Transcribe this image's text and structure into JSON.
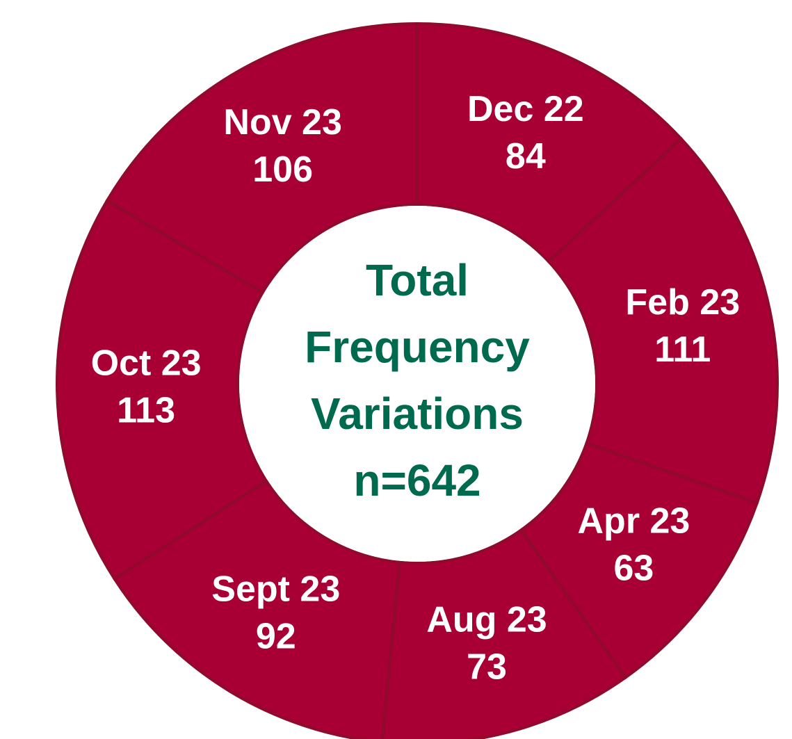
{
  "chart_data": {
    "type": "donut",
    "categories": [
      "Dec 22",
      "Feb 23",
      "Apr 23",
      "Aug 23",
      "Sept 23",
      "Oct 23",
      "Nov 23"
    ],
    "values": [
      84,
      111,
      63,
      73,
      92,
      113,
      106
    ],
    "color": "#a80034",
    "edge_color": "#8f0a2c",
    "center_text": [
      "Total",
      "Frequency",
      "Variations",
      "n=642"
    ],
    "center_color": "#006a4e"
  }
}
